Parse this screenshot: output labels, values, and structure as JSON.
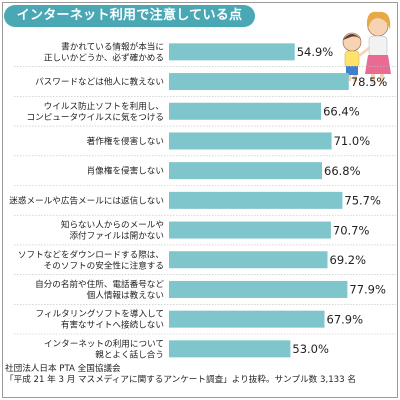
{
  "title": "インターネット利用で注意している点",
  "colors": {
    "accent": "#4aa8b4",
    "bar": "#7ec6cc",
    "text": "#222222"
  },
  "chart_data": {
    "type": "bar",
    "orientation": "horizontal",
    "title": "インターネット利用で注意している点",
    "xlim": [
      0,
      100
    ],
    "grid": false,
    "categories": [
      [
        "書かれている情報が本当に",
        "正しいかどうか、必ず確かめる"
      ],
      [
        "パスワードなどは他人に教えない"
      ],
      [
        "ウイルス防止ソフトを利用し、",
        "コンピュータウイルスに気をつける"
      ],
      [
        "著作権を侵害しない"
      ],
      [
        "肖像権を侵害しない"
      ],
      [
        "迷惑メールや広告メールには返信しない"
      ],
      [
        "知らない人からのメールや",
        "添付ファイルは開かない"
      ],
      [
        "ソフトなどをダウンロードする際は、",
        "そのソフトの安全性に注意する"
      ],
      [
        "自分の名前や住所、電話番号など",
        "個人情報は教えない"
      ],
      [
        "フィルタリングソフトを導入して",
        "有害なサイトへ接続しない"
      ],
      [
        "インターネットの利用について",
        "親とよく話し合う"
      ]
    ],
    "values": [
      54.9,
      78.5,
      66.4,
      71.0,
      66.8,
      75.7,
      70.7,
      69.2,
      77.9,
      67.9,
      53.0
    ],
    "value_labels": [
      "54.9%",
      "78.5%",
      "66.4%",
      "71.0%",
      "66.8%",
      "75.7%",
      "70.7%",
      "69.2%",
      "77.9%",
      "67.9%",
      "53.0%"
    ]
  },
  "source": {
    "line1": "社団法人日本 PTA 全国協議会",
    "line2": "「平成 21 年 3 月 マスメディアに関するアンケート調査」より抜粋。サンプル数 3,133 名"
  }
}
